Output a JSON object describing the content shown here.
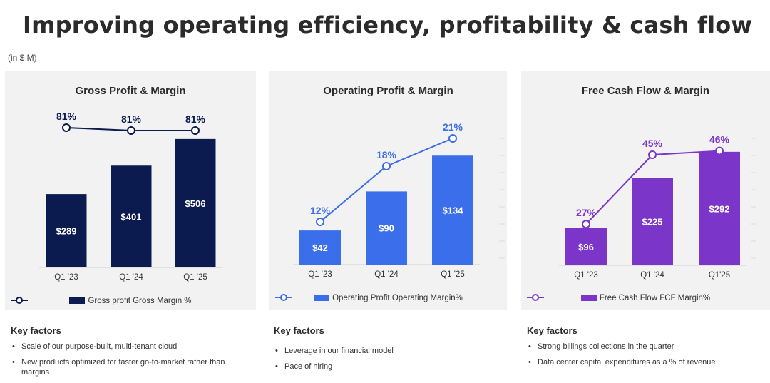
{
  "page": {
    "title": "Improving operating efficiency, profitability & cash flow",
    "units": "(in $ M)"
  },
  "chart_data": [
    {
      "type": "bar",
      "title": "Gross Profit & Margin",
      "categories": [
        "Q1 '23",
        "Q1 '24",
        "Q1 '25"
      ],
      "series": [
        {
          "name": "Gross profit",
          "kind": "bar",
          "values": [
            289,
            401,
            506
          ],
          "labels": [
            "$289",
            "$401",
            "$506"
          ],
          "color": "#0b1a4f"
        },
        {
          "name": "Gross Margin %",
          "kind": "line",
          "values": [
            81,
            81,
            81
          ],
          "labels": [
            "81%",
            "81%",
            "81%"
          ],
          "color": "#0b1a4f"
        }
      ]
    },
    {
      "type": "bar",
      "title": "Operating Profit & Margin",
      "categories": [
        "Q1 '23",
        "Q1 '24",
        "Q1 '25"
      ],
      "series": [
        {
          "name": "Operating Profit",
          "kind": "bar",
          "values": [
            42,
            90,
            134
          ],
          "labels": [
            "$42",
            "$90",
            "$134"
          ],
          "color": "#3b6eea"
        },
        {
          "name": "Operating Margin%",
          "kind": "line",
          "values": [
            12,
            18,
            21
          ],
          "labels": [
            "12%",
            "18%",
            "21%"
          ],
          "color": "#3b6eea"
        }
      ]
    },
    {
      "type": "bar",
      "title": "Free Cash Flow & Margin",
      "categories": [
        "Q1 '23",
        "Q1 '24",
        "Q1'25"
      ],
      "series": [
        {
          "name": "Free Cash Flow",
          "kind": "bar",
          "values": [
            96,
            225,
            292
          ],
          "labels": [
            "$96",
            "$225",
            "$292"
          ],
          "color": "#7b35c9"
        },
        {
          "name": "FCF Margin%",
          "kind": "line",
          "values": [
            27,
            45,
            46
          ],
          "labels": [
            "27%",
            "45%",
            "46%"
          ],
          "color": "#7b35c9"
        }
      ]
    }
  ],
  "key_factors": [
    {
      "heading": "Key factors",
      "items": [
        "Scale of our purpose-built, multi-tenant cloud",
        "New products optimized for faster go-to-market rather than margins"
      ]
    },
    {
      "heading": "Key factors",
      "items": [
        "Leverage in our financial model",
        "Pace of hiring"
      ]
    },
    {
      "heading": "Key factors",
      "items": [
        "Strong billings collections in the quarter",
        "Data center capital expenditures as a % of revenue"
      ]
    }
  ]
}
